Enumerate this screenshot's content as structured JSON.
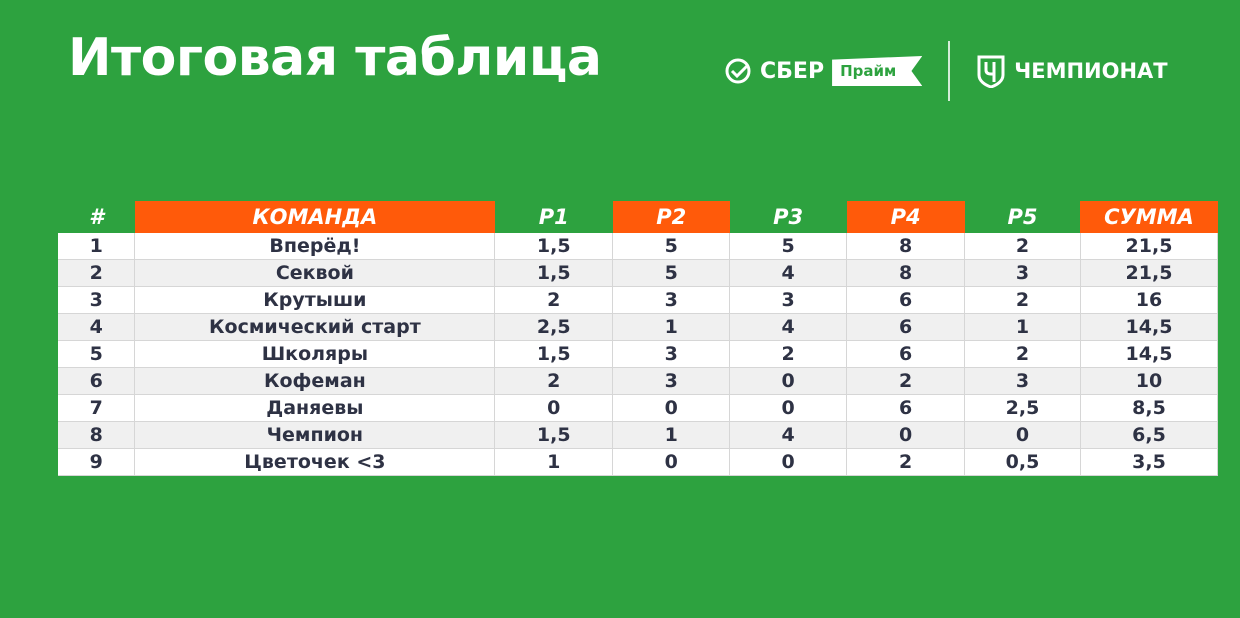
{
  "title": "Итоговая таблица",
  "logos": {
    "sber": "СБЕР",
    "prime": "Прайм",
    "championat": "ЧЕМПИОНАТ"
  },
  "colors": {
    "background": "#2da23f",
    "accent": "#ff5a0a",
    "text": "#2e3244"
  },
  "table": {
    "headers": [
      "#",
      "КОМАНДА",
      "Р1",
      "Р2",
      "Р3",
      "Р4",
      "Р5",
      "СУММА"
    ],
    "rows": [
      [
        "1",
        "Вперёд!",
        "1,5",
        "5",
        "5",
        "8",
        "2",
        "21,5"
      ],
      [
        "2",
        "Секвой",
        "1,5",
        "5",
        "4",
        "8",
        "3",
        "21,5"
      ],
      [
        "3",
        "Крутыши",
        "2",
        "3",
        "3",
        "6",
        "2",
        "16"
      ],
      [
        "4",
        "Космический старт",
        "2,5",
        "1",
        "4",
        "6",
        "1",
        "14,5"
      ],
      [
        "5",
        "Школяры",
        "1,5",
        "3",
        "2",
        "6",
        "2",
        "14,5"
      ],
      [
        "6",
        "Кофеман",
        "2",
        "3",
        "0",
        "2",
        "3",
        "10"
      ],
      [
        "7",
        "Даняевы",
        "0",
        "0",
        "0",
        "6",
        "2,5",
        "8,5"
      ],
      [
        "8",
        "Чемпион",
        "1,5",
        "1",
        "4",
        "0",
        "0",
        "6,5"
      ],
      [
        "9",
        "Цветочек <3",
        "1",
        "0",
        "0",
        "2",
        "0,5",
        "3,5"
      ]
    ]
  }
}
